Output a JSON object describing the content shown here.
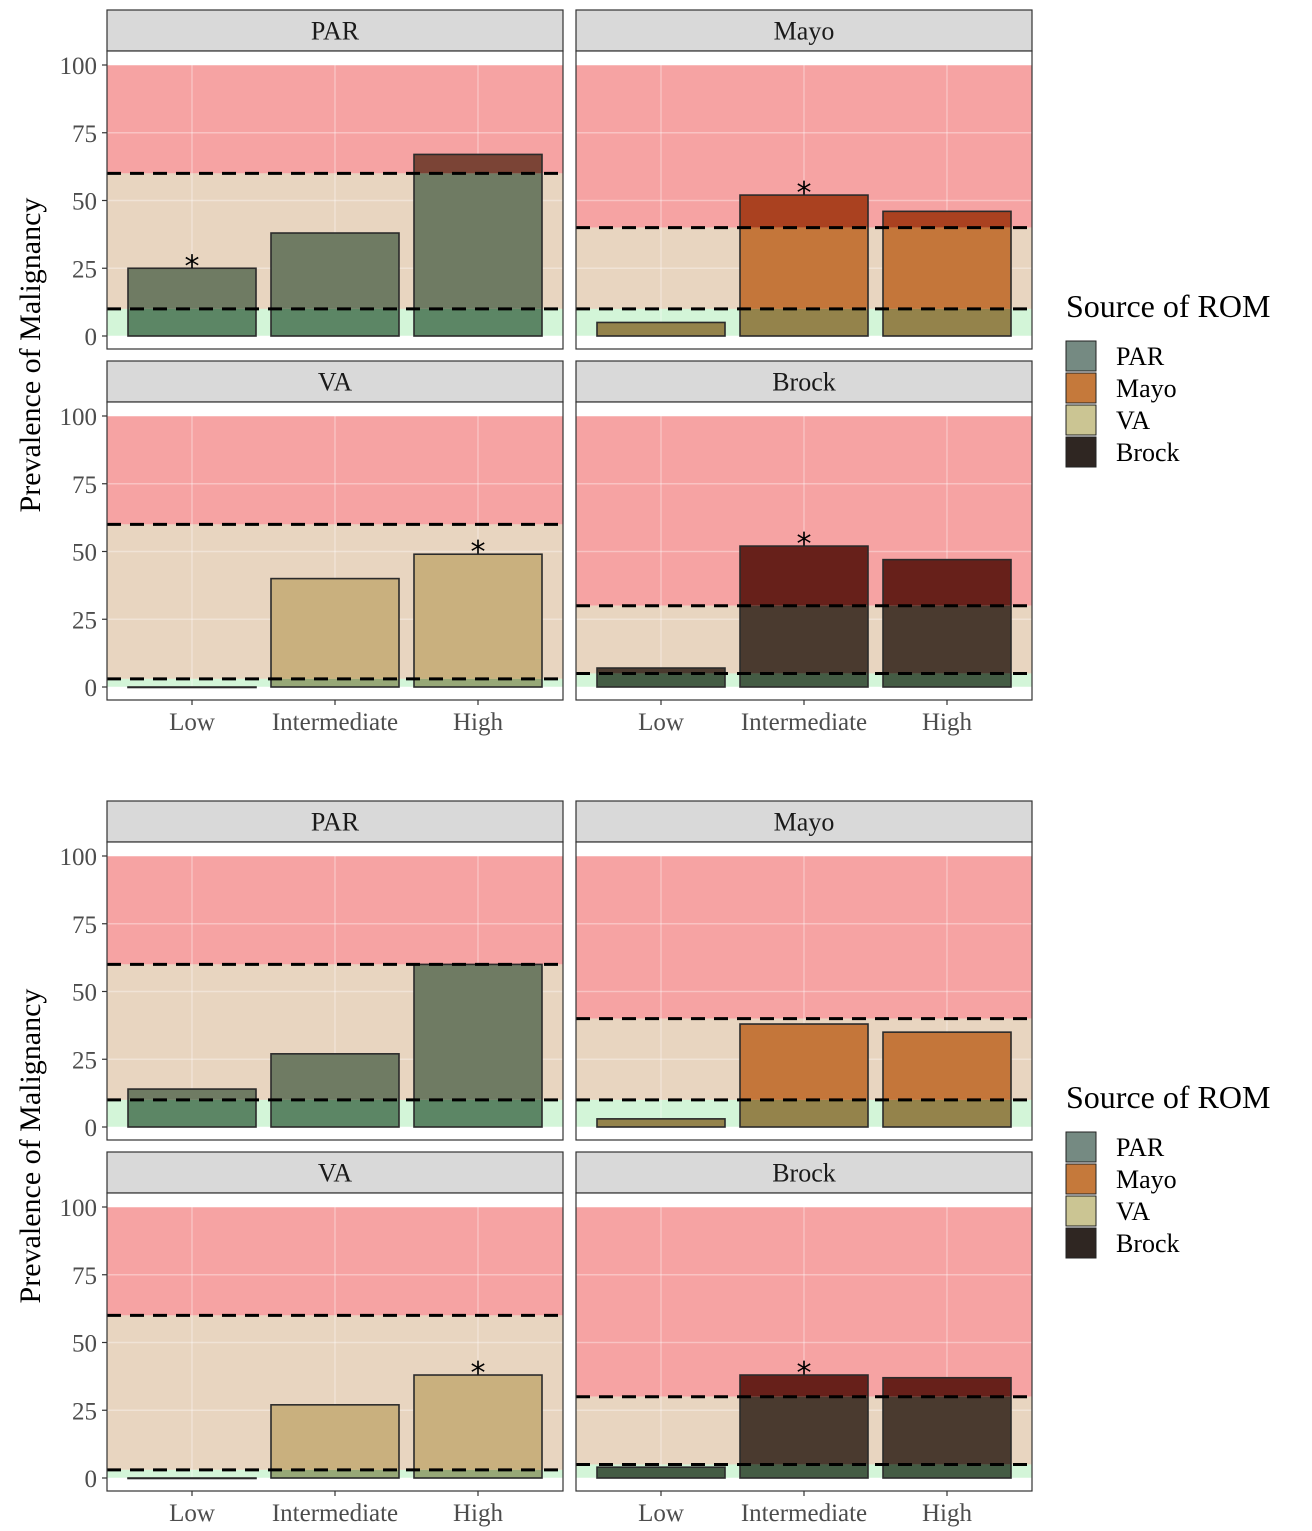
{
  "chart_data": [
    {
      "type": "bar",
      "ylabel": "Prevalence of Malignancy",
      "ylim": [
        0,
        100
      ],
      "yticks": [
        0,
        25,
        50,
        75,
        100
      ],
      "categories": [
        "Low",
        "Intermediate",
        "High"
      ],
      "legend": {
        "title": "Source of ROM",
        "entries": [
          "PAR",
          "Mayo",
          "VA",
          "Brock"
        ],
        "placement": "right"
      },
      "zones": {
        "high_color": "#f6a3a3",
        "mid_color": "#e8d5c0",
        "low_color": "#d3f5d8"
      },
      "panels": [
        {
          "name": "PAR",
          "color": "#6f7b63",
          "values": [
            25,
            38,
            67
          ],
          "thresholds": [
            10,
            60
          ],
          "asterisks": [
            "Low"
          ]
        },
        {
          "name": "Mayo",
          "color": "#c4763a",
          "values": [
            5,
            52,
            46
          ],
          "thresholds": [
            10,
            40
          ],
          "asterisks": [
            "Intermediate"
          ]
        },
        {
          "name": "VA",
          "color": "#c9b07e",
          "values": [
            0,
            40,
            49
          ],
          "thresholds": [
            3,
            60
          ],
          "asterisks": [
            "High"
          ]
        },
        {
          "name": "Brock",
          "color": "#4a3a2f",
          "values": [
            7,
            52,
            47
          ],
          "thresholds": [
            5,
            30
          ],
          "asterisks": [
            "Intermediate"
          ]
        }
      ]
    },
    {
      "type": "bar",
      "ylabel": "Prevalence of Malignancy",
      "ylim": [
        0,
        100
      ],
      "yticks": [
        0,
        25,
        50,
        75,
        100
      ],
      "categories": [
        "Low",
        "Intermediate",
        "High"
      ],
      "legend": {
        "title": "Source of ROM",
        "entries": [
          "PAR",
          "Mayo",
          "VA",
          "Brock"
        ],
        "placement": "right"
      },
      "zones": {
        "high_color": "#f6a3a3",
        "mid_color": "#e8d5c0",
        "low_color": "#d3f5d8"
      },
      "panels": [
        {
          "name": "PAR",
          "color": "#6f7b63",
          "values": [
            14,
            27,
            60
          ],
          "thresholds": [
            10,
            60
          ],
          "asterisks": []
        },
        {
          "name": "Mayo",
          "color": "#c4763a",
          "values": [
            3,
            38,
            35
          ],
          "thresholds": [
            10,
            40
          ],
          "asterisks": []
        },
        {
          "name": "VA",
          "color": "#c9b07e",
          "values": [
            0,
            27,
            38
          ],
          "thresholds": [
            3,
            60
          ],
          "asterisks": [
            "High"
          ]
        },
        {
          "name": "Brock",
          "color": "#4a3a2f",
          "values": [
            4,
            38,
            37
          ],
          "thresholds": [
            5,
            30
          ],
          "asterisks": [
            "Intermediate"
          ]
        }
      ]
    }
  ],
  "asterisk_symbol": "*",
  "legend_colors": {
    "PAR": "#758a82",
    "Mayo": "#c5793b",
    "VA": "#cbc593",
    "Brock": "#2f2622"
  }
}
